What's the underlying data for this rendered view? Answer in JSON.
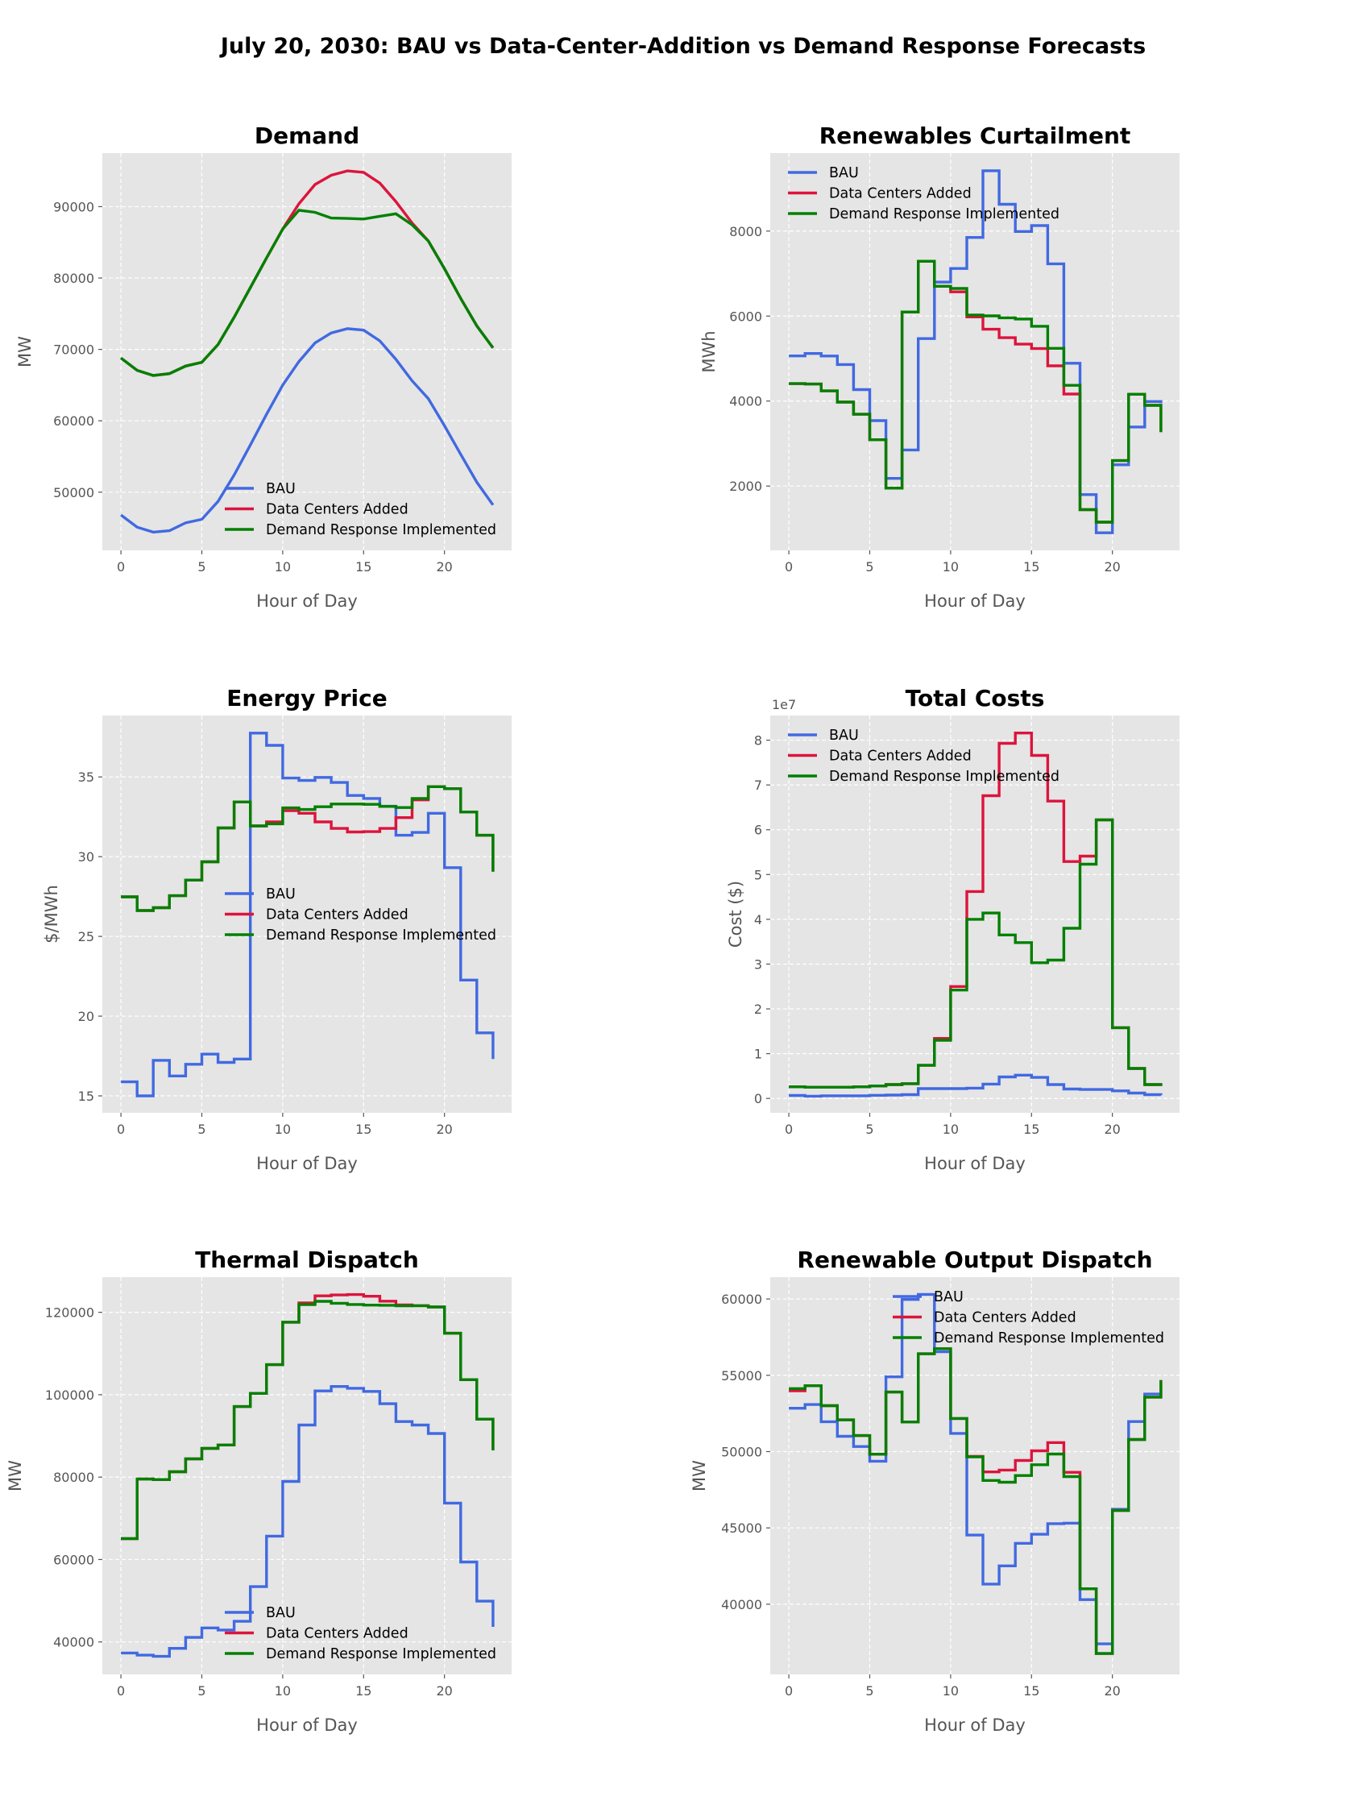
{
  "title": "July 20, 2030: BAU vs Data-Center-Addition vs Demand Response Forecasts",
  "colors": {
    "BAU": "#4169E1",
    "Data Centers Added": "#DC143C",
    "Demand Response Implemented": "#008000",
    "axes_bg": "#E5E5E5",
    "grid": "#FFFFFF"
  },
  "chart_data": [
    {
      "type": "line",
      "title": "Demand",
      "xlabel": "Hour of Day",
      "ylabel": "MW",
      "xlim": [
        -1.15,
        24.15
      ],
      "ylim": [
        41850,
        97500
      ],
      "grid": true,
      "legend": "lower right",
      "xticks": [
        0,
        5,
        10,
        15,
        20
      ],
      "yticks": [
        50000,
        60000,
        70000,
        80000,
        90000
      ],
      "x": [
        0,
        1,
        2,
        3,
        4,
        5,
        6,
        7,
        8,
        9,
        10,
        11,
        12,
        13,
        14,
        15,
        16,
        17,
        18,
        19,
        20,
        21,
        22,
        23
      ],
      "series": [
        {
          "name": "BAU",
          "values": [
            46800,
            45100,
            44400,
            44600,
            45700,
            46200,
            48700,
            52400,
            56600,
            60900,
            65000,
            68300,
            70900,
            72300,
            72900,
            72700,
            71200,
            68600,
            65600,
            63100,
            59300,
            55300,
            51400,
            48200
          ]
        },
        {
          "name": "Data Centers Added",
          "values": [
            68800,
            67070,
            66350,
            66600,
            67670,
            68200,
            70680,
            74500,
            78650,
            82800,
            86850,
            90400,
            93100,
            94400,
            95000,
            94800,
            93300,
            90700,
            87700,
            85200,
            81300,
            77150,
            73300,
            70200
          ]
        },
        {
          "name": "Demand Response Implemented",
          "values": [
            68800,
            67070,
            66350,
            66600,
            67670,
            68200,
            70680,
            74500,
            78650,
            82800,
            86850,
            89500,
            89200,
            88400,
            88350,
            88270,
            88650,
            89000,
            87450,
            85200,
            81300,
            77150,
            73300,
            70200
          ]
        }
      ]
    },
    {
      "type": "step",
      "title": "Renewables Curtailment",
      "xlabel": "Hour of Day",
      "ylabel": "MWh",
      "xlim": [
        -1.15,
        24.15
      ],
      "ylim": [
        487,
        9835
      ],
      "grid": true,
      "legend": "upper left",
      "xticks": [
        0,
        5,
        10,
        15,
        20
      ],
      "yticks": [
        2000,
        4000,
        6000,
        8000
      ],
      "x": [
        0,
        1,
        2,
        3,
        4,
        5,
        6,
        7,
        8,
        9,
        10,
        11,
        12,
        13,
        14,
        15,
        16,
        17,
        18,
        19,
        20,
        21,
        22,
        23
      ],
      "series": [
        {
          "name": "BAU",
          "values": [
            5063,
            5120,
            5060,
            4860,
            4270,
            3540,
            2180,
            2850,
            5470,
            6800,
            7120,
            7850,
            9420,
            8630,
            7990,
            8130,
            7230,
            4890,
            1800,
            900,
            2500,
            3390,
            3990,
            3950
          ]
        },
        {
          "name": "Data Centers Added",
          "values": [
            4410,
            4400,
            4240,
            3975,
            3690,
            3090,
            1950,
            6095,
            7290,
            6700,
            6570,
            5980,
            5690,
            5490,
            5340,
            5235,
            4830,
            4165,
            1445,
            1150,
            2600,
            4160,
            3900,
            3270
          ]
        },
        {
          "name": "Demand Response Implemented",
          "values": [
            4410,
            4400,
            4240,
            3975,
            3690,
            3090,
            1950,
            6095,
            7290,
            6700,
            6650,
            6025,
            6005,
            5960,
            5930,
            5760,
            5240,
            4370,
            1445,
            1150,
            2600,
            4160,
            3900,
            3270
          ]
        }
      ]
    },
    {
      "type": "step",
      "title": "Energy Price",
      "xlabel": "Hour of Day",
      "ylabel": "$/MWh",
      "xlim": [
        -1.15,
        24.15
      ],
      "ylim": [
        13.94,
        38.85
      ],
      "grid": true,
      "legend": "center right",
      "xticks": [
        0,
        5,
        10,
        15,
        20
      ],
      "yticks": [
        15,
        20,
        25,
        30,
        35
      ],
      "x": [
        0,
        1,
        2,
        3,
        4,
        5,
        6,
        7,
        8,
        9,
        10,
        11,
        12,
        13,
        14,
        15,
        16,
        17,
        18,
        19,
        20,
        21,
        22,
        23
      ],
      "series": [
        {
          "name": "BAU",
          "values": [
            15.88,
            15.0,
            17.23,
            16.25,
            16.98,
            17.62,
            17.1,
            17.31,
            37.75,
            36.98,
            34.93,
            34.78,
            34.97,
            34.65,
            33.84,
            33.65,
            33.16,
            31.34,
            31.52,
            32.72,
            29.31,
            22.26,
            18.95,
            17.31
          ]
        },
        {
          "name": "Data Centers Added",
          "values": [
            27.48,
            26.62,
            26.8,
            27.55,
            28.53,
            29.68,
            31.8,
            33.43,
            31.93,
            32.18,
            32.89,
            32.72,
            32.18,
            31.77,
            31.55,
            31.57,
            31.77,
            32.45,
            33.56,
            34.39,
            34.26,
            32.8,
            31.34,
            29.06
          ]
        },
        {
          "name": "Demand Response Implemented",
          "values": [
            27.48,
            26.62,
            26.8,
            27.55,
            28.53,
            29.68,
            31.8,
            33.43,
            31.93,
            32.06,
            33.06,
            32.96,
            33.13,
            33.3,
            33.3,
            33.28,
            33.15,
            33.08,
            33.65,
            34.39,
            34.26,
            32.8,
            31.34,
            29.06
          ]
        }
      ]
    },
    {
      "type": "step",
      "title": "Total Costs",
      "xlabel": "Hour of Day",
      "ylabel": "Cost ($)",
      "offset_text": "1e7",
      "xlim": [
        -1.15,
        24.15
      ],
      "ylim": [
        -0.32,
        8.55
      ],
      "grid": true,
      "legend": "upper left",
      "xticks": [
        0,
        5,
        10,
        15,
        20
      ],
      "yticks": [
        0,
        1,
        2,
        3,
        4,
        5,
        6,
        7,
        8
      ],
      "x": [
        0,
        1,
        2,
        3,
        4,
        5,
        6,
        7,
        8,
        9,
        10,
        11,
        12,
        13,
        14,
        15,
        16,
        17,
        18,
        19,
        20,
        21,
        22,
        23
      ],
      "series": [
        {
          "name": "BAU",
          "values": [
            0.066,
            0.05,
            0.06,
            0.06,
            0.06,
            0.07,
            0.075,
            0.085,
            0.22,
            0.22,
            0.22,
            0.23,
            0.32,
            0.48,
            0.52,
            0.47,
            0.31,
            0.21,
            0.2,
            0.2,
            0.17,
            0.12,
            0.085,
            0.07
          ]
        },
        {
          "name": "Data Centers Added",
          "values": [
            0.26,
            0.25,
            0.25,
            0.25,
            0.26,
            0.28,
            0.31,
            0.33,
            0.74,
            1.34,
            2.5,
            4.62,
            6.76,
            7.93,
            8.16,
            7.66,
            6.64,
            5.29,
            5.41,
            6.22,
            1.58,
            0.67,
            0.31,
            0.28
          ]
        },
        {
          "name": "Demand Response Implemented",
          "values": [
            0.26,
            0.25,
            0.25,
            0.25,
            0.26,
            0.28,
            0.31,
            0.33,
            0.74,
            1.3,
            2.42,
            4.0,
            4.14,
            3.65,
            3.48,
            3.03,
            3.09,
            3.8,
            5.23,
            6.22,
            1.58,
            0.67,
            0.31,
            0.28
          ]
        }
      ]
    },
    {
      "type": "step",
      "title": "Thermal Dispatch",
      "xlabel": "Hour of Day",
      "ylabel": "MW",
      "xlim": [
        -1.15,
        24.15
      ],
      "ylim": [
        32120,
        128530
      ],
      "grid": true,
      "legend": "lower right",
      "xticks": [
        0,
        5,
        10,
        15,
        20
      ],
      "yticks": [
        40000,
        60000,
        80000,
        100000,
        120000
      ],
      "x": [
        0,
        1,
        2,
        3,
        4,
        5,
        6,
        7,
        8,
        9,
        10,
        11,
        12,
        13,
        14,
        15,
        16,
        17,
        18,
        19,
        20,
        21,
        22,
        23
      ],
      "series": [
        {
          "name": "BAU",
          "values": [
            37330,
            36800,
            36500,
            38440,
            41100,
            43400,
            42900,
            45000,
            53420,
            65670,
            78960,
            92640,
            100910,
            102000,
            101560,
            100800,
            97800,
            93480,
            92640,
            90600,
            73700,
            59400,
            49900,
            43650
          ]
        },
        {
          "name": "Data Centers Added",
          "values": [
            65080,
            79540,
            79410,
            81300,
            84430,
            86970,
            87800,
            97130,
            100330,
            107300,
            117590,
            122300,
            124000,
            124200,
            124300,
            123900,
            122700,
            121800,
            121600,
            121300,
            114920,
            103650,
            94070,
            86500
          ]
        },
        {
          "name": "Demand Response Implemented",
          "values": [
            65080,
            79540,
            79410,
            81300,
            84430,
            86970,
            87800,
            97130,
            100330,
            107300,
            117590,
            121890,
            122670,
            122200,
            121900,
            121750,
            121700,
            121560,
            121600,
            121300,
            114920,
            103650,
            94070,
            86500
          ]
        }
      ]
    },
    {
      "type": "step",
      "title": "Renewable Output Dispatch",
      "xlabel": "Hour of Day",
      "ylabel": "MW",
      "xlim": [
        -1.15,
        24.15
      ],
      "ylim": [
        35400,
        61430
      ],
      "grid": true,
      "legend": "upper right",
      "xticks": [
        0,
        5,
        10,
        15,
        20
      ],
      "yticks": [
        40000,
        45000,
        50000,
        55000,
        60000
      ],
      "x": [
        0,
        1,
        2,
        3,
        4,
        5,
        6,
        7,
        8,
        9,
        10,
        11,
        12,
        13,
        14,
        15,
        16,
        17,
        18,
        19,
        20,
        21,
        22,
        23
      ],
      "series": [
        {
          "name": "BAU",
          "values": [
            52840,
            53080,
            51960,
            51000,
            50330,
            49370,
            54900,
            59970,
            60300,
            56540,
            51190,
            44530,
            41320,
            42510,
            43990,
            44580,
            45280,
            45310,
            40300,
            37400,
            46220,
            51970,
            53770,
            53770
          ]
        },
        {
          "name": "Data Centers Added",
          "values": [
            53980,
            54320,
            53010,
            52080,
            51050,
            49830,
            53900,
            51940,
            56410,
            56740,
            52170,
            49690,
            48670,
            48790,
            49420,
            50050,
            50590,
            48640,
            41010,
            36770,
            46140,
            50790,
            53570,
            54690
          ]
        },
        {
          "name": "Demand Response Implemented",
          "values": [
            54130,
            54320,
            53010,
            52080,
            51050,
            49830,
            53900,
            51940,
            56410,
            56740,
            52170,
            49650,
            48110,
            47990,
            48430,
            49140,
            49840,
            48360,
            41010,
            36770,
            46140,
            50790,
            53570,
            54690
          ]
        }
      ]
    }
  ]
}
